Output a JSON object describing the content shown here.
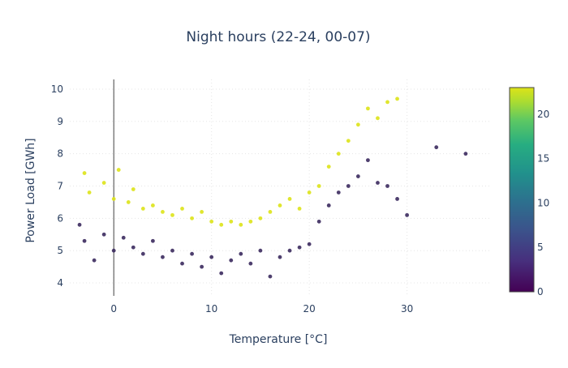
{
  "chart_data": {
    "type": "scatter",
    "title": "Night hours (22-24, 00-07)",
    "xlabel": "Temperature [°C]",
    "ylabel": "Power Load [GWh]",
    "xlim": [
      -4.5,
      38.5
    ],
    "ylim": [
      3.6,
      10.3
    ],
    "x_ticks": [
      0,
      10,
      20,
      30
    ],
    "y_ticks": [
      4,
      5,
      6,
      7,
      8,
      9,
      10
    ],
    "grid": true,
    "zero_line_x": 0,
    "color_variable": "hour",
    "colorbar": {
      "range": [
        0,
        23
      ],
      "ticks": [
        0,
        5,
        10,
        15,
        20
      ],
      "colorscale": "Viridis",
      "position": "right"
    },
    "series_summary": [
      {
        "hour_group": "22-24",
        "color": "#dde318",
        "points": [
          [
            -3,
            7.4
          ],
          [
            -2.5,
            6.8
          ],
          [
            -1,
            7.1
          ],
          [
            0,
            6.6
          ],
          [
            0.5,
            7.5
          ],
          [
            1.5,
            6.5
          ],
          [
            2,
            6.9
          ],
          [
            3,
            6.3
          ],
          [
            4,
            6.4
          ],
          [
            5,
            6.2
          ],
          [
            6,
            6.1
          ],
          [
            7,
            6.3
          ],
          [
            8,
            6.0
          ],
          [
            9,
            6.2
          ],
          [
            10,
            5.9
          ],
          [
            11,
            5.8
          ],
          [
            12,
            5.9
          ],
          [
            13,
            5.8
          ],
          [
            14,
            5.9
          ],
          [
            15,
            6.0
          ],
          [
            16,
            6.2
          ],
          [
            17,
            6.4
          ],
          [
            18,
            6.6
          ],
          [
            19,
            6.3
          ],
          [
            20,
            6.8
          ],
          [
            21,
            7.0
          ],
          [
            22,
            7.6
          ],
          [
            23,
            8.0
          ],
          [
            24,
            8.4
          ],
          [
            25,
            8.9
          ],
          [
            26,
            9.4
          ],
          [
            27,
            9.1
          ],
          [
            28,
            9.6
          ],
          [
            29,
            9.7
          ]
        ]
      },
      {
        "hour_group": "00-07",
        "color": "#3b2a5e",
        "points": [
          [
            -3.5,
            5.8
          ],
          [
            -3,
            5.3
          ],
          [
            -2,
            4.7
          ],
          [
            -1,
            5.5
          ],
          [
            0,
            5.0
          ],
          [
            1,
            5.4
          ],
          [
            2,
            5.1
          ],
          [
            3,
            4.9
          ],
          [
            4,
            5.3
          ],
          [
            5,
            4.8
          ],
          [
            6,
            5.0
          ],
          [
            7,
            4.6
          ],
          [
            8,
            4.9
          ],
          [
            9,
            4.5
          ],
          [
            10,
            4.8
          ],
          [
            11,
            4.3
          ],
          [
            12,
            4.7
          ],
          [
            13,
            4.9
          ],
          [
            14,
            4.6
          ],
          [
            15,
            5.0
          ],
          [
            16,
            4.2
          ],
          [
            17,
            4.8
          ],
          [
            18,
            5.0
          ],
          [
            19,
            5.1
          ],
          [
            20,
            5.2
          ],
          [
            21,
            5.9
          ],
          [
            22,
            6.4
          ],
          [
            23,
            6.8
          ],
          [
            24,
            7.0
          ],
          [
            25,
            7.3
          ],
          [
            26,
            7.8
          ],
          [
            27,
            7.1
          ],
          [
            28,
            7.0
          ],
          [
            29,
            6.6
          ],
          [
            30,
            6.1
          ],
          [
            33,
            8.2
          ],
          [
            36,
            8.0
          ]
        ]
      }
    ]
  }
}
